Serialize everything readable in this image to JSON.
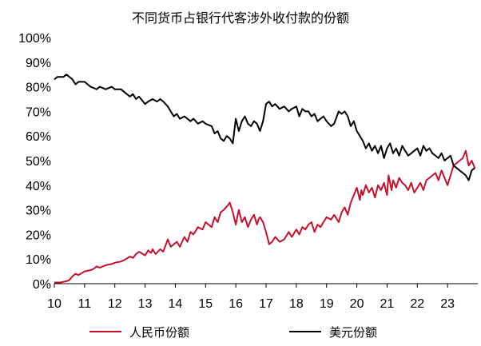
{
  "chart_data": {
    "type": "line",
    "title": "不同货币占银行代客涉外收付款的份额",
    "x_ticks": [
      "10",
      "11",
      "12",
      "13",
      "14",
      "15",
      "16",
      "17",
      "18",
      "19",
      "20",
      "21",
      "22",
      "23"
    ],
    "y_ticks": [
      "0%",
      "10%",
      "20%",
      "30%",
      "40%",
      "50%",
      "60%",
      "70%",
      "80%",
      "90%",
      "100%"
    ],
    "xlim": [
      2010,
      2024
    ],
    "ylim": [
      0,
      100
    ],
    "legend_position": "bottom",
    "series": [
      {
        "name": "人民币份额",
        "color": "#c8102e",
        "x": [
          2010.0,
          2010.2,
          2010.4,
          2010.5,
          2010.6,
          2010.7,
          2010.8,
          2011.0,
          2011.2,
          2011.3,
          2011.4,
          2011.5,
          2011.7,
          2011.9,
          2012.0,
          2012.2,
          2012.3,
          2012.5,
          2012.6,
          2012.7,
          2012.8,
          2013.0,
          2013.1,
          2013.2,
          2013.25,
          2013.35,
          2013.5,
          2013.6,
          2013.75,
          2013.85,
          2013.95,
          2014.05,
          2014.15,
          2014.3,
          2014.4,
          2014.5,
          2014.6,
          2014.75,
          2014.9,
          2015.0,
          2015.2,
          2015.3,
          2015.4,
          2015.5,
          2015.6,
          2015.75,
          2015.8,
          2015.9,
          2016.0,
          2016.1,
          2016.2,
          2016.3,
          2016.4,
          2016.5,
          2016.6,
          2016.7,
          2016.75,
          2016.8,
          2016.9,
          2017.0,
          2017.1,
          2017.2,
          2017.3,
          2017.45,
          2017.6,
          2017.75,
          2017.85,
          2018.0,
          2018.1,
          2018.2,
          2018.3,
          2018.4,
          2018.5,
          2018.6,
          2018.7,
          2018.8,
          2018.9,
          2019.0,
          2019.15,
          2019.25,
          2019.4,
          2019.5,
          2019.6,
          2019.7,
          2019.8,
          2019.9,
          2020.0,
          2020.1,
          2020.15,
          2020.2,
          2020.3,
          2020.4,
          2020.5,
          2020.6,
          2020.7,
          2020.8,
          2020.9,
          2021.0,
          2021.05,
          2021.15,
          2021.2,
          2021.3,
          2021.4,
          2021.5,
          2021.6,
          2021.7,
          2021.8,
          2021.9,
          2022.0,
          2022.1,
          2022.2,
          2022.3,
          2022.4,
          2022.5,
          2022.6,
          2022.7,
          2022.8,
          2022.9,
          2023.0,
          2023.1,
          2023.2,
          2023.3,
          2023.4,
          2023.5,
          2023.6,
          2023.7,
          2023.8,
          2023.9
        ],
        "values": [
          0.5,
          0.5,
          1,
          1.5,
          3,
          4,
          3.5,
          5,
          5.5,
          6,
          7,
          6.5,
          7.5,
          8,
          8.5,
          9,
          9.5,
          11,
          10.5,
          12,
          13,
          11.5,
          13.5,
          12.5,
          14,
          12,
          14,
          13,
          18,
          15,
          16,
          17,
          15,
          19,
          17,
          21,
          20,
          23,
          22,
          25,
          23,
          27,
          25,
          29,
          30,
          32,
          33,
          29,
          24,
          30,
          25,
          27,
          23,
          26,
          28,
          24,
          26,
          27,
          25,
          21,
          16,
          17,
          19,
          17,
          18,
          21,
          19,
          22,
          20,
          23,
          22,
          24,
          25,
          21,
          24,
          23,
          25,
          27,
          26,
          28,
          25,
          29,
          31,
          28,
          33,
          36,
          39,
          34,
          38,
          36,
          40,
          37,
          39,
          35,
          40,
          38,
          41,
          36,
          44,
          38,
          42,
          39,
          43,
          41,
          40,
          38,
          41,
          37,
          39,
          41,
          38,
          42,
          43,
          44,
          45,
          42,
          46,
          43,
          40,
          44,
          48,
          49,
          50,
          51,
          54,
          48,
          50,
          47
        ]
      },
      {
        "name": "美元份额",
        "color": "#000000",
        "x": [
          2010.0,
          2010.1,
          2010.2,
          2010.3,
          2010.4,
          2010.5,
          2010.6,
          2010.7,
          2010.8,
          2010.9,
          2011.0,
          2011.2,
          2011.4,
          2011.5,
          2011.7,
          2011.9,
          2012.0,
          2012.2,
          2012.3,
          2012.5,
          2012.6,
          2012.7,
          2012.8,
          2013.0,
          2013.1,
          2013.25,
          2013.4,
          2013.5,
          2013.6,
          2013.75,
          2013.85,
          2013.95,
          2014.05,
          2014.15,
          2014.3,
          2014.5,
          2014.6,
          2014.75,
          2014.9,
          2015.0,
          2015.2,
          2015.3,
          2015.4,
          2015.5,
          2015.6,
          2015.7,
          2015.8,
          2015.9,
          2016.0,
          2016.1,
          2016.2,
          2016.3,
          2016.4,
          2016.5,
          2016.6,
          2016.7,
          2016.8,
          2016.9,
          2017.0,
          2017.1,
          2017.2,
          2017.3,
          2017.45,
          2017.6,
          2017.75,
          2017.85,
          2018.0,
          2018.1,
          2018.2,
          2018.3,
          2018.4,
          2018.5,
          2018.6,
          2018.7,
          2018.8,
          2018.9,
          2019.0,
          2019.15,
          2019.25,
          2019.4,
          2019.5,
          2019.6,
          2019.7,
          2019.8,
          2019.9,
          2020.0,
          2020.1,
          2020.2,
          2020.3,
          2020.4,
          2020.5,
          2020.6,
          2020.7,
          2020.8,
          2020.9,
          2021.0,
          2021.1,
          2021.2,
          2021.3,
          2021.4,
          2021.5,
          2021.6,
          2021.7,
          2021.8,
          2021.9,
          2022.0,
          2022.1,
          2022.2,
          2022.3,
          2022.4,
          2022.5,
          2022.6,
          2022.7,
          2022.8,
          2022.9,
          2023.0,
          2023.1,
          2023.2,
          2023.3,
          2023.4,
          2023.5,
          2023.6,
          2023.7,
          2023.8,
          2023.9
        ],
        "values": [
          83,
          84,
          84,
          84,
          85,
          84,
          83,
          81,
          82,
          82,
          82,
          80,
          79,
          80,
          79,
          80,
          79,
          79,
          78,
          76,
          77,
          75,
          76,
          73,
          74,
          75,
          74,
          75,
          74,
          72,
          70,
          68,
          69,
          67,
          68,
          66,
          67,
          65,
          66,
          65,
          64,
          61,
          62,
          59,
          58,
          60,
          59,
          57,
          67,
          62,
          66,
          68,
          65,
          64,
          66,
          65,
          62,
          66,
          73,
          74,
          72,
          73,
          71,
          72,
          70,
          71,
          72,
          68,
          71,
          70,
          70,
          68,
          69,
          66,
          67,
          68,
          66,
          64,
          65,
          70,
          69,
          70,
          68,
          64,
          66,
          62,
          60,
          58,
          55,
          57,
          54,
          56,
          53,
          56,
          51,
          55,
          57,
          53,
          55,
          52,
          56,
          54,
          52,
          53,
          54,
          55,
          52,
          56,
          54,
          55,
          53,
          52,
          51,
          53,
          50,
          51,
          52,
          48,
          47,
          46,
          45,
          44,
          42,
          46,
          47
        ]
      }
    ]
  }
}
